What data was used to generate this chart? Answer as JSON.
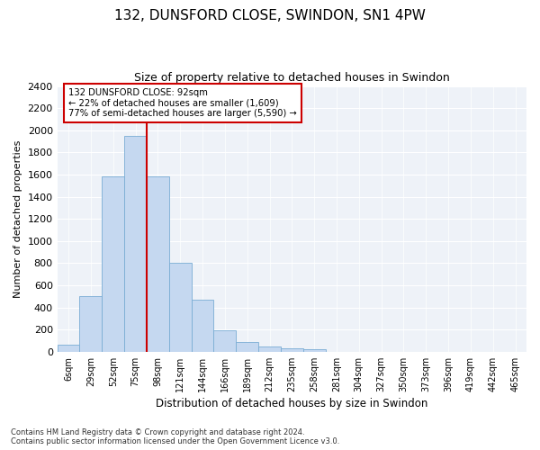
{
  "title_line1": "132, DUNSFORD CLOSE, SWINDON, SN1 4PW",
  "title_line2": "Size of property relative to detached houses in Swindon",
  "xlabel": "Distribution of detached houses by size in Swindon",
  "ylabel": "Number of detached properties",
  "bar_color": "#c5d8f0",
  "bar_edge_color": "#7aadd4",
  "categories": [
    "6sqm",
    "29sqm",
    "52sqm",
    "75sqm",
    "98sqm",
    "121sqm",
    "144sqm",
    "166sqm",
    "189sqm",
    "212sqm",
    "235sqm",
    "258sqm",
    "281sqm",
    "304sqm",
    "327sqm",
    "350sqm",
    "373sqm",
    "396sqm",
    "419sqm",
    "442sqm",
    "465sqm"
  ],
  "values": [
    60,
    500,
    1580,
    1950,
    1580,
    800,
    470,
    190,
    90,
    45,
    30,
    20,
    0,
    0,
    0,
    0,
    0,
    0,
    0,
    0,
    0
  ],
  "ylim": [
    0,
    2400
  ],
  "yticks": [
    0,
    200,
    400,
    600,
    800,
    1000,
    1200,
    1400,
    1600,
    1800,
    2000,
    2200,
    2400
  ],
  "red_line_x": 3.5,
  "annotation_line1": "132 DUNSFORD CLOSE: 92sqm",
  "annotation_line2": "← 22% of detached houses are smaller (1,609)",
  "annotation_line3": "77% of semi-detached houses are larger (5,590) →",
  "annotation_box_color": "#ffffff",
  "annotation_border_color": "#cc0000",
  "red_line_color": "#cc0000",
  "footnote1": "Contains HM Land Registry data © Crown copyright and database right 2024.",
  "footnote2": "Contains public sector information licensed under the Open Government Licence v3.0.",
  "plot_bg_color": "#eef2f8"
}
